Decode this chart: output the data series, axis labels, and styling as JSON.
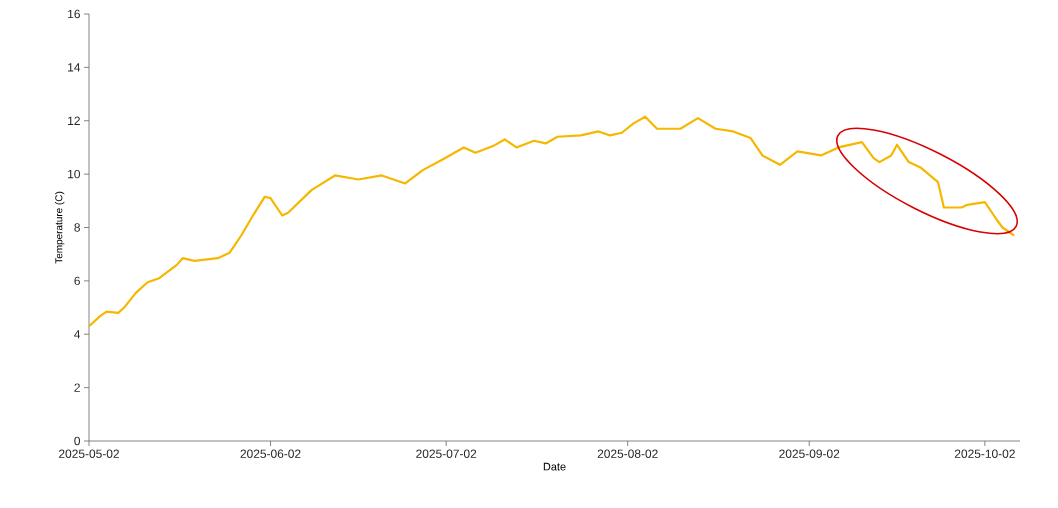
{
  "chart_data": {
    "type": "line",
    "xlabel": "Date",
    "ylabel": "Temperature (C)",
    "x": [
      "2025-05-02",
      "2025-05-04",
      "2025-05-05",
      "2025-05-07",
      "2025-05-08",
      "2025-05-10",
      "2025-05-12",
      "2025-05-14",
      "2025-05-17",
      "2025-05-18",
      "2025-05-20",
      "2025-05-24",
      "2025-05-26",
      "2025-05-28",
      "2025-05-30",
      "2025-06-01",
      "2025-06-02",
      "2025-06-04",
      "2025-06-05",
      "2025-06-09",
      "2025-06-13",
      "2025-06-17",
      "2025-06-21",
      "2025-06-23",
      "2025-06-25",
      "2025-06-28",
      "2025-07-01",
      "2025-07-05",
      "2025-07-07",
      "2025-07-10",
      "2025-07-12",
      "2025-07-14",
      "2025-07-17",
      "2025-07-19",
      "2025-07-21",
      "2025-07-25",
      "2025-07-28",
      "2025-07-30",
      "2025-08-01",
      "2025-08-03",
      "2025-08-05",
      "2025-08-07",
      "2025-08-11",
      "2025-08-14",
      "2025-08-17",
      "2025-08-20",
      "2025-08-23",
      "2025-08-25",
      "2025-08-28",
      "2025-08-31",
      "2025-09-04",
      "2025-09-07",
      "2025-09-11",
      "2025-09-13",
      "2025-09-14",
      "2025-09-16",
      "2025-09-17",
      "2025-09-19",
      "2025-09-21",
      "2025-09-24",
      "2025-09-25",
      "2025-09-28",
      "2025-09-29",
      "2025-10-02",
      "2025-10-04",
      "2025-10-05",
      "2025-10-07"
    ],
    "series": [
      {
        "color": "#f5b700",
        "values": [
          4.3,
          4.7,
          4.85,
          4.8,
          5.0,
          5.55,
          5.95,
          6.1,
          6.6,
          6.85,
          6.75,
          6.85,
          7.05,
          7.7,
          8.45,
          9.15,
          9.1,
          8.45,
          8.55,
          9.4,
          9.95,
          9.8,
          9.95,
          9.8,
          9.65,
          10.15,
          10.5,
          11.0,
          10.8,
          11.05,
          11.3,
          11.0,
          11.25,
          11.15,
          11.4,
          11.45,
          11.6,
          11.45,
          11.55,
          11.9,
          12.15,
          11.7,
          11.7,
          12.1,
          11.7,
          11.6,
          11.35,
          10.7,
          10.35,
          10.85,
          10.7,
          11.0,
          11.2,
          10.6,
          10.45,
          10.7,
          11.1,
          10.45,
          10.25,
          9.7,
          8.75,
          8.75,
          8.85,
          8.95,
          8.3,
          8.0,
          7.7
        ]
      }
    ],
    "xlim": [
      "2025-05-02",
      "2025-10-08"
    ],
    "xticks": [
      "2025-05-02",
      "2025-06-02",
      "2025-07-02",
      "2025-08-02",
      "2025-09-02",
      "2025-10-02"
    ],
    "ylim": [
      0,
      16
    ],
    "yticks": [
      0,
      2,
      4,
      6,
      8,
      10,
      12,
      14,
      16
    ],
    "grid": false,
    "marker": "none",
    "line_style": "solid"
  }
}
